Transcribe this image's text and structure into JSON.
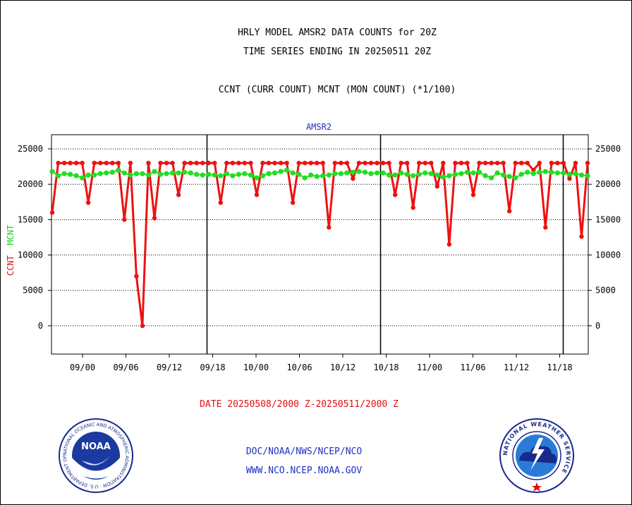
{
  "header": {
    "title_line1": "HRLY MODEL AMSR2 DATA COUNTS for 20Z",
    "title_line2": "TIME SERIES ENDING IN 20250511 20Z",
    "subtitle": "CCNT (CURR COUNT) MCNT (MON COUNT) (*1/100)"
  },
  "footer": {
    "date_range": "DATE 20250508/2000 Z-20250511/2000 Z",
    "org": "DOC/NOAA/NWS/NCEP/NCO",
    "web": "WWW.NCO.NCEP.NOAA.GOV"
  },
  "logos": {
    "left": "noaa-logo",
    "left_text": "NOAA",
    "left_ring_text": "NATIONAL OCEANIC AND ATMOSPHERIC ADMINISTRATION · U.S. DEPARTMENT OF COMMERCE",
    "right": "nws-logo",
    "right_ring_text": "NATIONAL WEATHER SERVICE"
  },
  "colors": {
    "ccnt": "#ee1111",
    "mcnt": "#22dd22",
    "label_blue": "#2030c0",
    "grid": "#000000"
  },
  "chart_data": {
    "type": "line",
    "plot_label": "AMSR2",
    "ylabel_ccnt": "CCNT",
    "ylabel_mcnt": "MCNT",
    "ylim": [
      -4000,
      27000
    ],
    "yticks": [
      0,
      5000,
      10000,
      15000,
      20000,
      25000
    ],
    "x_tick_labels": [
      "09/00",
      "09/06",
      "09/12",
      "09/18",
      "10/00",
      "10/06",
      "10/12",
      "10/18",
      "11/00",
      "11/06",
      "11/12",
      "11/18"
    ],
    "day_boundaries": [
      "09/18",
      "10/18",
      "11/18"
    ],
    "grid": "horizontal dashed",
    "legend": "left axis label",
    "series": [
      {
        "name": "CCNT",
        "values": [
          16000,
          23000,
          23000,
          23000,
          23000,
          23000,
          17400,
          23000,
          23000,
          23000,
          23000,
          23000,
          15000,
          23000,
          7000,
          0,
          23000,
          15200,
          23000,
          23000,
          23000,
          18500,
          23000,
          23000,
          23000,
          23000,
          23000,
          23000,
          17400,
          23000,
          23000,
          23000,
          23000,
          23000,
          18500,
          23000,
          23000,
          23000,
          23000,
          23000,
          17400,
          23000,
          23000,
          23000,
          23000,
          23000,
          13900,
          23000,
          23000,
          23000,
          20800,
          23000,
          23000,
          23000,
          23000,
          23000,
          23000,
          18500,
          23000,
          23000,
          16700,
          23000,
          23000,
          23000,
          19700,
          23000,
          11500,
          23000,
          23000,
          23000,
          18500,
          23000,
          23000,
          23000,
          23000,
          23000,
          16200,
          23000,
          23000,
          23000,
          22000,
          23000,
          13900,
          23000,
          23000,
          23000,
          20800,
          23000,
          12600,
          23000
        ]
      },
      {
        "name": "MCNT",
        "values": [
          21800,
          21200,
          21500,
          21400,
          21200,
          20900,
          21300,
          21300,
          21500,
          21600,
          21700,
          22000,
          21600,
          21300,
          21500,
          21500,
          21300,
          21800,
          21400,
          21500,
          21600,
          21600,
          21700,
          21600,
          21400,
          21300,
          21400,
          21300,
          21200,
          21500,
          21200,
          21400,
          21500,
          21300,
          20900,
          21200,
          21500,
          21600,
          21800,
          22000,
          21600,
          21400,
          20900,
          21300,
          21100,
          21200,
          21300,
          21500,
          21500,
          21600,
          21700,
          21800,
          21700,
          21500,
          21600,
          21600,
          21300,
          21300,
          21600,
          21400,
          21200,
          21400,
          21600,
          21500,
          21300,
          21000,
          21200,
          21400,
          21500,
          21700,
          21600,
          21700,
          21200,
          20900,
          21600,
          21300,
          21100,
          20900,
          21400,
          21700,
          21500,
          21700,
          21800,
          21700,
          21600,
          21600,
          21400,
          21500,
          21300,
          21200
        ]
      }
    ]
  }
}
